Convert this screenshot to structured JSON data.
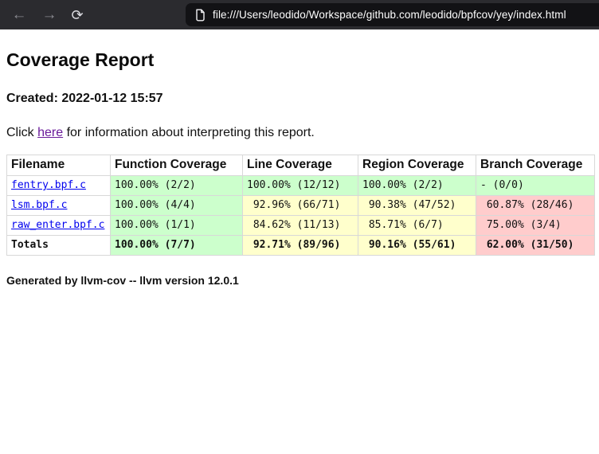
{
  "browser": {
    "back_icon": "←",
    "forward_icon": "→",
    "reload_icon": "⟳",
    "url": "file:///Users/leodido/Workspace/github.com/leodido/bpfcov/yey/index.html"
  },
  "page": {
    "title": "Coverage Report",
    "created_line": "Created: 2022-01-12 15:57",
    "info_prefix": "Click ",
    "info_link_text": "here",
    "info_suffix": " for information about interpreting this report.",
    "footer": "Generated by llvm-cov -- llvm version 12.0.1"
  },
  "table": {
    "headers": [
      "Filename",
      "Function Coverage",
      "Line Coverage",
      "Region Coverage",
      "Branch Coverage"
    ],
    "rows": [
      {
        "filename": "fentry.bpf.c",
        "link": true,
        "total": false,
        "cells": [
          {
            "text": "100.00% (2/2)",
            "status": "green"
          },
          {
            "text": "100.00% (12/12)",
            "status": "green"
          },
          {
            "text": "100.00% (2/2)",
            "status": "green"
          },
          {
            "text": "- (0/0)",
            "status": "green"
          }
        ]
      },
      {
        "filename": "lsm.bpf.c",
        "link": true,
        "total": false,
        "cells": [
          {
            "text": "100.00% (4/4)",
            "status": "green"
          },
          {
            "text": " 92.96% (66/71)",
            "status": "yellow"
          },
          {
            "text": " 90.38% (47/52)",
            "status": "yellow"
          },
          {
            "text": " 60.87% (28/46)",
            "status": "red"
          }
        ]
      },
      {
        "filename": "raw_enter.bpf.c",
        "link": true,
        "total": false,
        "cells": [
          {
            "text": "100.00% (1/1)",
            "status": "green"
          },
          {
            "text": " 84.62% (11/13)",
            "status": "yellow"
          },
          {
            "text": " 85.71% (6/7)",
            "status": "yellow"
          },
          {
            "text": " 75.00% (3/4)",
            "status": "red"
          }
        ]
      },
      {
        "filename": "Totals",
        "link": false,
        "total": true,
        "cells": [
          {
            "text": "100.00% (7/7)",
            "status": "green"
          },
          {
            "text": " 92.71% (89/96)",
            "status": "yellow"
          },
          {
            "text": " 90.16% (55/61)",
            "status": "yellow"
          },
          {
            "text": " 62.00% (31/50)",
            "status": "red"
          }
        ]
      }
    ]
  },
  "colors": {
    "pass_green": "#ccffcc",
    "warn_yellow": "#ffffcc",
    "fail_red": "#ffcccc",
    "file_link_blue": "#0000ee",
    "visited_purple": "#6a1b9a",
    "toolbar_bg": "#2b2b2f",
    "urlbar_bg": "#121215"
  }
}
